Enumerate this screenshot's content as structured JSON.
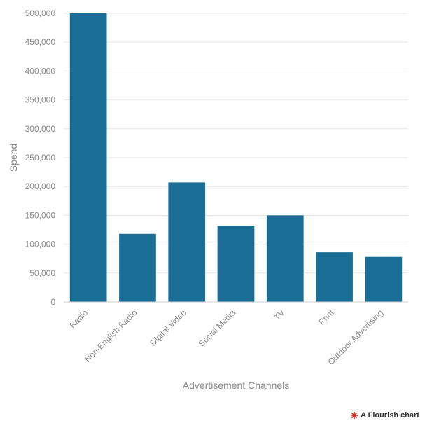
{
  "chart_data": {
    "type": "bar",
    "categories": [
      "Radio",
      "Non-English Radio",
      "Digital Video",
      "Social Media",
      "TV",
      "Print",
      "Outdoor Advertising"
    ],
    "values": [
      500000,
      118000,
      207000,
      132000,
      150000,
      86000,
      78000
    ],
    "xlabel": "Advertisement Channels",
    "ylabel": "Spend",
    "ylim": [
      0,
      500000
    ],
    "yticks": [
      0,
      50000,
      100000,
      150000,
      200000,
      250000,
      300000,
      350000,
      400000,
      450000,
      500000
    ],
    "ytick_labels": [
      "0",
      "50,000",
      "100,000",
      "150,000",
      "200,000",
      "250,000",
      "300,000",
      "350,000",
      "400,000",
      "450,000",
      "500,000"
    ],
    "grid": true,
    "bar_color": "#1a6e96"
  },
  "credit": {
    "text": "A Flourish chart",
    "logo_color": "#d9281e"
  }
}
